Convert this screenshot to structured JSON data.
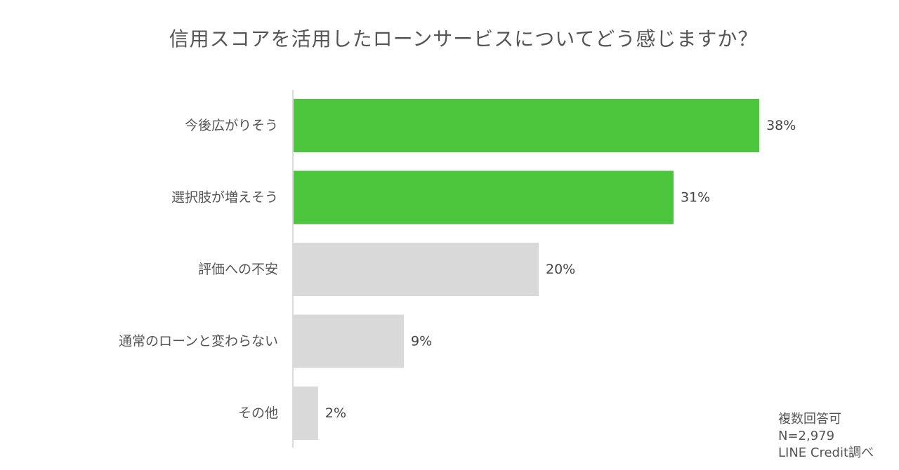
{
  "chart_data": {
    "type": "bar",
    "orientation": "horizontal",
    "title": "信用スコアを活用したローンサービスについてどう感じますか？",
    "categories": [
      "今後広がりそう",
      "選択肢が増えそう",
      "評価への不安",
      "通常のローンと変わらない",
      "その他"
    ],
    "values": [
      38,
      31,
      20,
      9,
      2
    ],
    "value_labels": [
      "38%",
      "31%",
      "20%",
      "9%",
      "2%"
    ],
    "unit": "%",
    "xlim": [
      0,
      40
    ],
    "grid": false,
    "legend": "none",
    "highlight_color": "#4cc63d",
    "base_color": "#d9d9d9",
    "highlight_indices": [
      0,
      1
    ],
    "notes": [
      "複数回答可",
      "N=2,979",
      "LINE Credit調べ"
    ]
  }
}
